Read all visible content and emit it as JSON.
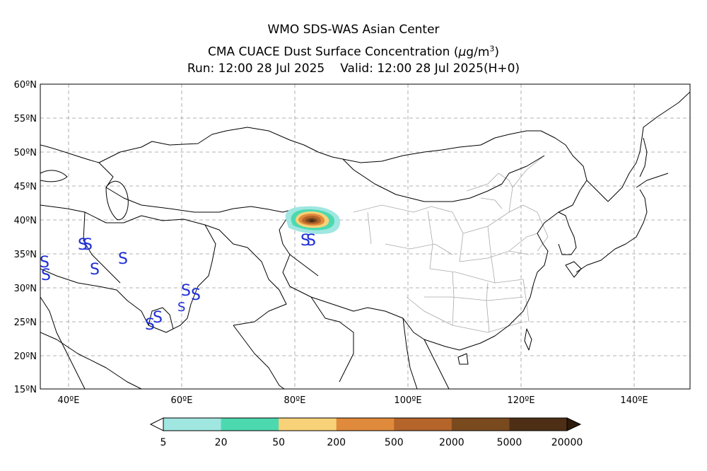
{
  "title": {
    "line1": "WMO SDS-WAS Asian Center",
    "line2_text": "CMA CUACE Dust Surface Concentration",
    "unit_mu": "μ",
    "unit_rest": "g/m",
    "unit_sup": "3",
    "run": "Run: 12:00 28 Jul 2025",
    "valid": "Valid: 12:00 28 Jul 2025(H+0)"
  },
  "map": {
    "lon_range": [
      35,
      150
    ],
    "lat_range": [
      15,
      60
    ],
    "lat_ticks": [
      "60ºN",
      "55ºN",
      "50ºN",
      "45ºN",
      "40ºN",
      "35ºN",
      "30ºN",
      "25ºN",
      "20ºN",
      "15ºN"
    ],
    "lon_ticks": [
      "40ºE",
      "60ºE",
      "80ºE",
      "100ºE",
      "120ºE",
      "140ºE"
    ],
    "grid": true,
    "dust_storm_symbol": "S"
  },
  "colorbar": {
    "labels": [
      "5",
      "20",
      "50",
      "200",
      "500",
      "2000",
      "5000",
      "20000"
    ],
    "colors": [
      "#a0e6e1",
      "#4dd9b0",
      "#f7d278",
      "#e08a3c",
      "#b5652a",
      "#7a4a1f",
      "#4e2f16",
      "#2c1a0b"
    ]
  }
}
